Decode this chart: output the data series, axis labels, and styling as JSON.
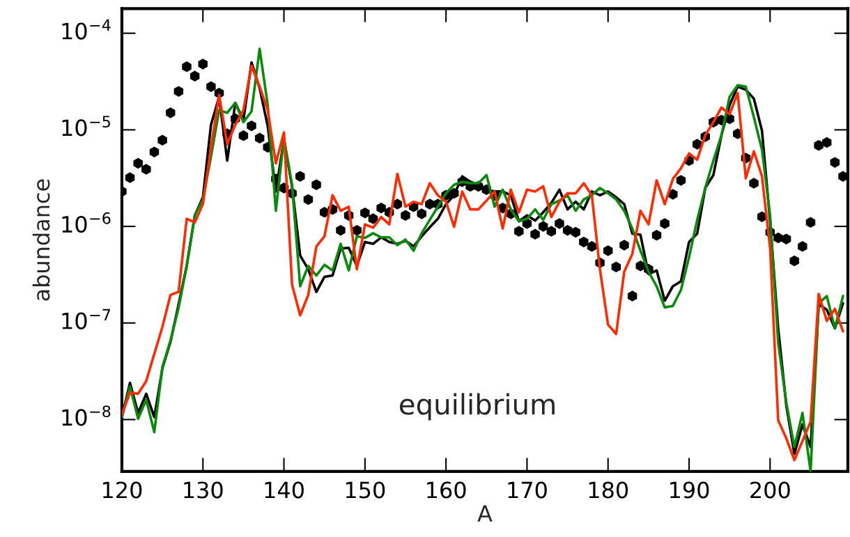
{
  "chart_data": {
    "type": "line",
    "xlabel": "A",
    "ylabel": "abundance",
    "log": "y",
    "xlim": [
      120,
      209.6
    ],
    "xticks": [
      120,
      130,
      140,
      150,
      160,
      170,
      180,
      190,
      200
    ],
    "ylim": [
      2.9e-09,
      0.00018
    ],
    "yticks": [
      {
        "value": 1e-08,
        "label": "10$^{−8}$"
      },
      {
        "value": 1e-07,
        "label": "10$^{−7}$"
      },
      {
        "value": 1e-06,
        "label": "10$^{−6}$"
      },
      {
        "value": 1e-05,
        "label": "10$^{−5}$"
      },
      {
        "value": 0.0001,
        "label": "10$^{−4}$"
      }
    ],
    "grid": false,
    "legend": false,
    "annotations": [
      "equilibrium"
    ],
    "x": [
      120,
      121,
      122,
      123,
      124,
      125,
      126,
      127,
      128,
      129,
      130,
      131,
      132,
      133,
      134,
      135,
      136,
      137,
      138,
      139,
      140,
      141,
      142,
      143,
      144,
      145,
      146,
      147,
      148,
      149,
      150,
      151,
      152,
      153,
      154,
      155,
      156,
      157,
      158,
      159,
      160,
      161,
      162,
      163,
      164,
      165,
      166,
      167,
      168,
      169,
      170,
      171,
      172,
      173,
      174,
      175,
      176,
      177,
      178,
      179,
      180,
      181,
      182,
      183,
      184,
      185,
      186,
      187,
      188,
      189,
      190,
      191,
      192,
      193,
      194,
      195,
      196,
      197,
      198,
      199,
      200,
      201,
      202,
      203,
      204,
      205,
      206,
      207,
      208,
      209
    ],
    "series": [
      {
        "type": "scatter",
        "color": "#000000",
        "values": [
          2.3e-06,
          3.2e-06,
          4.5e-06,
          3.9e-06,
          5.9e-06,
          7.8e-06,
          1.5e-05,
          2.5e-05,
          4.5e-05,
          3.6e-05,
          4.8e-05,
          2.8e-05,
          2.4e-05,
          9.1e-06,
          1.3e-05,
          8.7e-06,
          1.1e-05,
          8.2e-06,
          6.6e-06,
          3.1e-06,
          2.5e-06,
          2.2e-06,
          3.3e-06,
          1.9e-06,
          2.7e-06,
          1.4e-06,
          1.5e-06,
          9.1e-07,
          1.3e-06,
          9.1e-07,
          1.38e-06,
          1.2e-06,
          1.55e-06,
          1.4e-06,
          1.7e-06,
          1.3e-06,
          1.6e-06,
          1.35e-06,
          1.7e-06,
          1.7e-06,
          2.1e-06,
          2.2e-06,
          2.9e-06,
          2.6e-06,
          2.6e-06,
          2.4e-06,
          2.1e-06,
          1.55e-06,
          1.35e-06,
          8.9e-07,
          1.07e-06,
          8.3e-07,
          1e-06,
          8.9e-07,
          1.07e-06,
          9.1e-07,
          8.7e-07,
          6.9e-07,
          6.2e-07,
          4.2e-07,
          5.6e-07,
          3.8e-07,
          6.4e-07,
          1.9e-07,
          3.9e-07,
          3.6e-07,
          8.1e-07,
          1.07e-06,
          2.15e-06,
          3e-06,
          4.8e-06,
          7.1e-06,
          8.5e-06,
          1.2e-05,
          1.26e-05,
          1.3e-05,
          9.1e-06,
          5.1e-06,
          2.8e-06,
          1.26e-06,
          8.7e-07,
          7.6e-07,
          7.4e-07,
          4.4e-07,
          6.2e-07,
          1.1e-06,
          6.9e-06,
          7.4e-06,
          4.6e-06,
          3.3e-06
        ]
      },
      {
        "type": "line",
        "color": "#000000",
        "values": [
          1.06e-08,
          2.4e-08,
          1.17e-08,
          1.85e-08,
          1.06e-08,
          3.4e-08,
          6.4e-08,
          1.56e-07,
          3.9e-07,
          1.3e-06,
          2e-06,
          1.13e-05,
          2.2e-05,
          4.8e-06,
          1.9e-05,
          1.26e-05,
          5e-05,
          2.7e-05,
          1.09e-05,
          2.3e-06,
          7.9e-06,
          2.6e-06,
          5e-07,
          3.6e-07,
          2.1e-07,
          3e-07,
          3.1e-07,
          5.9e-07,
          6e-07,
          3.9e-07,
          6.9e-07,
          6.6e-07,
          7.7e-07,
          6.9e-07,
          6.6e-07,
          7.1e-07,
          6.2e-07,
          7.9e-07,
          9.8e-07,
          1.2e-06,
          1.7e-06,
          2.1e-06,
          3.3e-06,
          2.9e-06,
          2.7e-06,
          2.4e-06,
          2.3e-06,
          2.3e-06,
          2.1e-06,
          1.13e-06,
          1.3e-06,
          1.15e-06,
          1.4e-06,
          1.75e-06,
          2.4e-06,
          1.5e-06,
          1.8e-06,
          1.5e-06,
          2.3e-06,
          2.1e-06,
          2.3e-06,
          2e-06,
          1.7e-06,
          8.4e-07,
          8.2e-07,
          3.2e-07,
          3.5e-07,
          1.7e-07,
          2.4e-07,
          2.7e-07,
          6.9e-07,
          8.4e-07,
          2.5e-06,
          3.4e-06,
          8.8e-06,
          1.8e-05,
          2.8e-05,
          2.6e-05,
          2.1e-05,
          9.8e-06,
          1.13e-06,
          8.8e-08,
          1.4e-08,
          4.4e-09,
          8.9e-09,
          5.2e-09,
          1.56e-07,
          1.37e-07,
          8.8e-08,
          1.6e-07
        ]
      },
      {
        "type": "line",
        "color": "#0a8a0a",
        "values": [
          1.06e-08,
          2.2e-08,
          1.02e-08,
          1.6e-08,
          7.4e-09,
          3.5e-08,
          6.6e-08,
          1.44e-07,
          3.9e-07,
          1.3e-06,
          1.9e-06,
          5.3e-06,
          1.6e-05,
          1.5e-05,
          1.9e-05,
          1.2e-05,
          1.55e-05,
          6.9e-05,
          1.8e-05,
          1.45e-06,
          8.2e-06,
          2.7e-06,
          2.4e-07,
          3.9e-07,
          3.1e-07,
          4e-07,
          3.5e-07,
          6.6e-07,
          3.5e-07,
          7.9e-07,
          7.6e-07,
          8.5e-07,
          7.7e-07,
          7.7e-07,
          6.4e-07,
          7.3e-07,
          5.6e-07,
          8.5e-07,
          1.17e-06,
          1.6e-06,
          2.2e-06,
          2.7e-06,
          2.9e-06,
          2.8e-06,
          2.8e-06,
          3.4e-06,
          1.6e-06,
          2.4e-06,
          1.5e-06,
          1.13e-06,
          1.2e-06,
          1.5e-06,
          1.17e-06,
          1.7e-06,
          1.85e-06,
          2.1e-06,
          1.45e-06,
          1.9e-06,
          2.1e-06,
          2.5e-06,
          2.2e-06,
          1.9e-06,
          1.45e-06,
          9.5e-07,
          5.6e-07,
          3.4e-07,
          2.4e-07,
          1.45e-07,
          1.5e-07,
          2.2e-07,
          4.8e-07,
          1.17e-06,
          2.5e-06,
          4.8e-06,
          8.8e-06,
          2.2e-05,
          2.9e-05,
          2.8e-05,
          1.35e-05,
          6.2e-06,
          1.3e-06,
          6.2e-08,
          1.5e-08,
          5.2e-09,
          1.17e-08,
          2.9e-09,
          1.6e-07,
          1.9e-07,
          8.8e-08,
          1.9e-07
        ]
      },
      {
        "type": "line",
        "color": "#ff2a00",
        "values": [
          1.13e-08,
          1.9e-08,
          1.85e-08,
          2.5e-08,
          4.8e-08,
          9.1e-08,
          1.95e-07,
          2.1e-07,
          1.2e-06,
          1.1e-06,
          1.7e-06,
          6.6e-06,
          2.3e-05,
          7.1e-06,
          1.13e-05,
          1.6e-05,
          4.6e-05,
          2.8e-05,
          1.6e-05,
          4.5e-06,
          9.4e-06,
          2.5e-07,
          1.2e-07,
          1.95e-07,
          6.2e-07,
          7.9e-07,
          2.1e-06,
          1.45e-06,
          1.6e-06,
          3.6e-07,
          1.05e-06,
          9.7e-07,
          1.25e-06,
          1.05e-06,
          3.5e-06,
          1.6e-06,
          1.8e-06,
          1.7e-06,
          2.8e-06,
          2.1e-06,
          1.8e-06,
          9.9e-07,
          2.3e-06,
          1.5e-06,
          1.5e-06,
          1.85e-06,
          2.3e-06,
          9.5e-07,
          2.4e-06,
          1.4e-06,
          2.4e-06,
          2.3e-06,
          2.6e-06,
          1.25e-06,
          1.8e-06,
          2.2e-06,
          2.2e-06,
          2.8e-06,
          2.1e-06,
          3.6e-07,
          9.6e-08,
          7.7e-08,
          3.4e-07,
          5.2e-07,
          1.45e-06,
          1.05e-06,
          3e-06,
          1.7e-06,
          3.1e-06,
          4e-06,
          5.7e-06,
          4.9e-06,
          8.8e-06,
          1.2e-05,
          1.7e-05,
          1.45e-05,
          2.4e-05,
          3.15e-06,
          6e-06,
          3.3e-06,
          6e-07,
          9.8e-09,
          6.4e-09,
          3.8e-09,
          6e-09,
          9.5e-09,
          2e-07,
          1.05e-07,
          1.4e-07,
          8.2e-08
        ]
      }
    ]
  }
}
